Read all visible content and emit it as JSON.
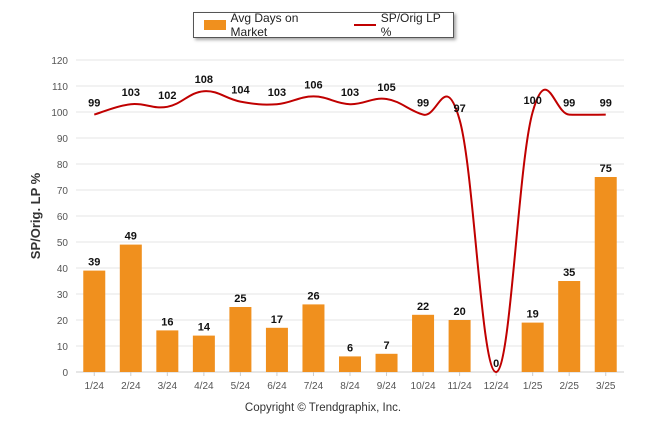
{
  "legend": {
    "bar_label": "Avg Days on Market",
    "line_label": "SP/Orig LP %"
  },
  "footer": {
    "copyright": "Copyright © Trendgraphix, Inc."
  },
  "colors": {
    "bar": "#F0901E",
    "line": "#C00000",
    "grid": "#E6E6E6",
    "axis_text": "#555555"
  },
  "chart_data": {
    "type": "bar",
    "categories": [
      "1/24",
      "2/24",
      "3/24",
      "4/24",
      "5/24",
      "6/24",
      "7/24",
      "8/24",
      "9/24",
      "10/24",
      "11/24",
      "12/24",
      "1/25",
      "2/25",
      "3/25"
    ],
    "series": [
      {
        "name": "Avg Days on Market",
        "type": "bar",
        "values": [
          39,
          49,
          16,
          14,
          25,
          17,
          26,
          6,
          7,
          22,
          20,
          0,
          19,
          35,
          75
        ]
      },
      {
        "name": "SP/Orig LP %",
        "type": "line",
        "values": [
          99,
          103,
          102,
          108,
          104,
          103,
          106,
          103,
          105,
          99,
          97,
          0,
          100,
          99,
          99
        ]
      }
    ],
    "ylabel": "SP/Orig. LP %",
    "ylim": [
      0,
      120
    ],
    "yticks": [
      0,
      10,
      20,
      30,
      40,
      50,
      60,
      70,
      80,
      90,
      100,
      110,
      120
    ],
    "grid": true,
    "legend": "top-center"
  }
}
